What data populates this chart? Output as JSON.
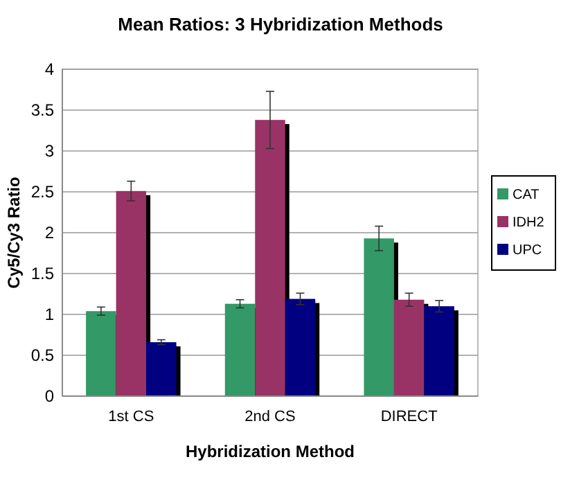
{
  "chart_data": {
    "type": "bar",
    "title": "Mean Ratios: 3 Hybridization Methods",
    "xlabel": "Hybridization Method",
    "ylabel": "Cy5/Cy3 Ratio",
    "categories": [
      "1st CS",
      "2nd CS",
      "DIRECT"
    ],
    "series": [
      {
        "name": "CAT",
        "color": "#339966",
        "values": [
          1.04,
          1.13,
          1.93
        ],
        "errors": [
          0.05,
          0.05,
          0.15
        ]
      },
      {
        "name": "IDH2",
        "color": "#993366",
        "values": [
          2.51,
          3.38,
          1.18
        ],
        "errors": [
          0.12,
          0.35,
          0.08
        ]
      },
      {
        "name": "UPC",
        "color": "#000080",
        "values": [
          0.66,
          1.19,
          1.1
        ],
        "errors": [
          0.03,
          0.07,
          0.07
        ]
      }
    ],
    "ylim": [
      0,
      4
    ],
    "yticks": [
      0,
      0.5,
      1,
      1.5,
      2,
      2.5,
      3,
      3.5,
      4
    ],
    "grid": "y",
    "legend": "right"
  }
}
